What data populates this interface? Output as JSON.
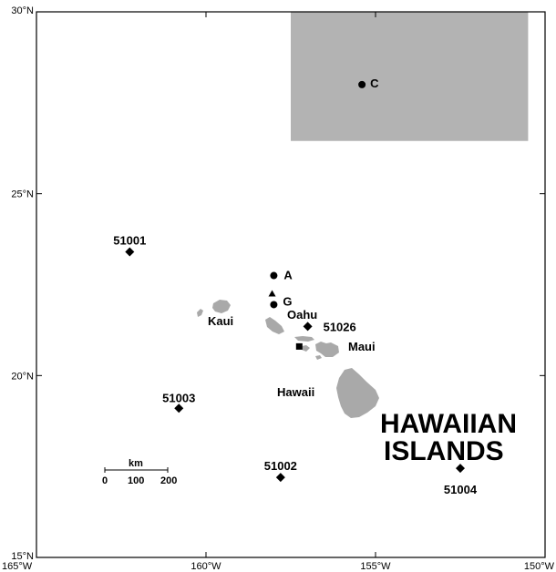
{
  "map": {
    "lon_range": [
      -165,
      -150
    ],
    "lat_range": [
      15,
      30
    ],
    "x_ticks": [
      {
        "value": -165,
        "label": "165°W"
      },
      {
        "value": -160,
        "label": "160°W"
      },
      {
        "value": -155,
        "label": "155°W"
      },
      {
        "value": -150,
        "label": "150°W"
      }
    ],
    "y_ticks": [
      {
        "value": 15,
        "label": "15°N"
      },
      {
        "value": 20,
        "label": "20°N"
      },
      {
        "value": 25,
        "label": "25°N"
      },
      {
        "value": 30,
        "label": "30°N"
      }
    ],
    "shaded_region": {
      "lon": [
        -157.5,
        -150.5
      ],
      "lat": [
        26.45,
        30
      ],
      "color": "#b3b3b3"
    },
    "station_markers": [
      {
        "id": "C",
        "label": "C",
        "marker": "circle",
        "lon": -155.4,
        "lat": 28.0
      },
      {
        "id": "A",
        "label": "A",
        "marker": "circle",
        "lon": -158.0,
        "lat": 22.75
      },
      {
        "id": "G",
        "label": "G",
        "marker": "circle",
        "lon": -158.0,
        "lat": 21.95
      },
      {
        "id": "tri",
        "label": "",
        "marker": "triangle",
        "lon": -158.05,
        "lat": 22.25
      },
      {
        "id": "sq",
        "label": "",
        "marker": "square",
        "lon": -157.25,
        "lat": 20.8
      },
      {
        "id": "51001",
        "label": "51001",
        "marker": "diamond",
        "lon": -162.25,
        "lat": 23.4
      },
      {
        "id": "51003",
        "label": "51003",
        "marker": "diamond",
        "lon": -160.8,
        "lat": 19.1
      },
      {
        "id": "51002",
        "label": "51002",
        "marker": "diamond",
        "lon": -157.8,
        "lat": 17.2
      },
      {
        "id": "51004",
        "label": "51004",
        "marker": "diamond",
        "lon": -152.5,
        "lat": 17.45
      },
      {
        "id": "51026",
        "label": "51026",
        "marker": "diamond",
        "lon": -157.0,
        "lat": 21.35
      }
    ],
    "island_labels": {
      "kauai": "Kaui",
      "oahu": "Oahu",
      "maui": "Maui",
      "hawaii": "Hawaii"
    },
    "title": [
      "HAWAIIAN",
      "ISLANDS"
    ],
    "scale_bar": {
      "unit": "km",
      "ticks": [
        "0",
        "100",
        "200"
      ]
    },
    "colors": {
      "land": "#a9a9a9",
      "frame": "#000000",
      "markers": "#000000"
    }
  }
}
